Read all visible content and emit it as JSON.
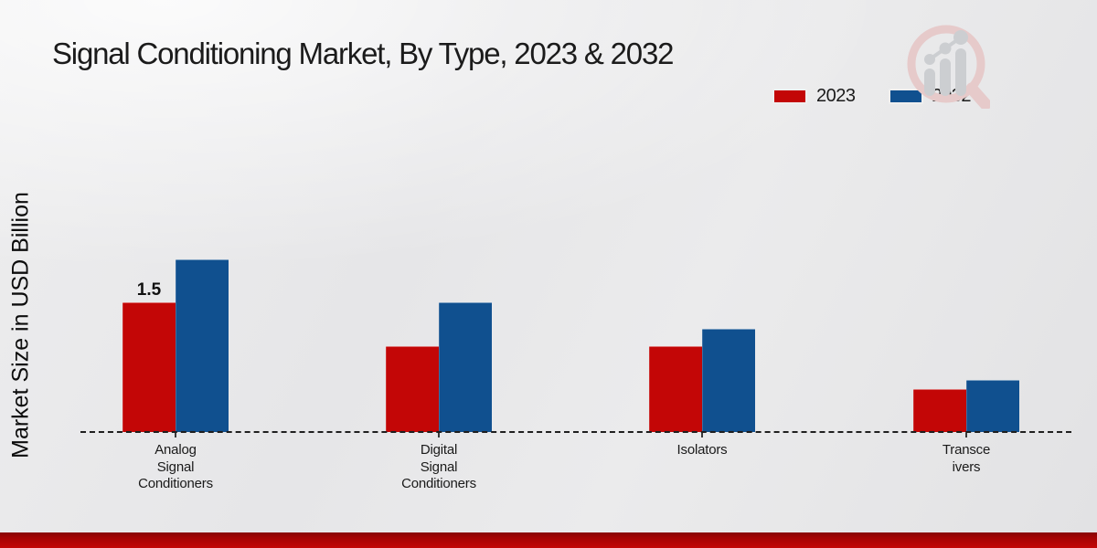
{
  "title": "Signal Conditioning Market, By Type, 2023 & 2032",
  "y_axis_label": "Market Size in USD Billion",
  "legend": {
    "items": [
      {
        "label": "2023",
        "color": "#c30606"
      },
      {
        "label": "2032",
        "color": "#10508f"
      }
    ]
  },
  "watermark": "magnifier-growth-chart-logo",
  "colors": {
    "series_2023": "#c30606",
    "series_2032": "#10508f",
    "footer_stripe": "#b00505",
    "baseline": "#1f1f1f",
    "background": "#e8e8e9"
  },
  "chart_data": {
    "type": "bar",
    "title": "Signal Conditioning Market, By Type, 2023 & 2032",
    "ylabel": "Market Size in USD Billion",
    "xlabel": "",
    "categories": [
      "Analog Signal Conditioners",
      "Digital Signal Conditioners",
      "Isolators",
      "Transceivers"
    ],
    "category_label_lines": [
      [
        "Analog",
        "Signal",
        "Conditioners"
      ],
      [
        "Digital",
        "Signal",
        "Conditioners"
      ],
      [
        "Isolators"
      ],
      [
        "Transce",
        "ivers"
      ]
    ],
    "series": [
      {
        "name": "2023",
        "color": "#c30606",
        "values": [
          1.5,
          1.0,
          1.0,
          0.5
        ]
      },
      {
        "name": "2032",
        "color": "#10508f",
        "values": [
          2.0,
          1.5,
          1.2,
          0.6
        ]
      }
    ],
    "data_labels": [
      {
        "series": "2023",
        "category_index": 0,
        "text": "1.5"
      }
    ],
    "ylim": [
      0,
      2.2
    ],
    "grid": false,
    "legend_position": "top-right",
    "baseline_style": "dashed"
  }
}
